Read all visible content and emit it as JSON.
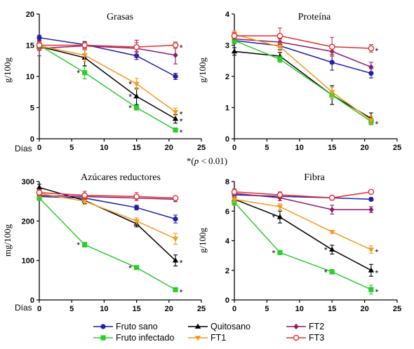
{
  "note": {
    "star": "*(",
    "p": "p",
    "rest": " < 0.01)"
  },
  "colors": {
    "fruto_sano": "#1f1fa8",
    "quitosano": "#000000",
    "ft2": "#8e1a6c",
    "fruto_infectado": "#2bcc2b",
    "ft1": "#f59a1f",
    "ft3": "#e03030"
  },
  "legend": [
    {
      "name": "Fruto sano",
      "color": "#1f1fa8",
      "marker": "circle"
    },
    {
      "name": "Quitosano",
      "color": "#000000",
      "marker": "triangle-up"
    },
    {
      "name": "FT2",
      "color": "#8e1a6c",
      "marker": "diamond"
    },
    {
      "name": "Fruto infectado",
      "color": "#2bcc2b",
      "marker": "square"
    },
    {
      "name": "FT1",
      "color": "#f59a1f",
      "marker": "triangle-down"
    },
    {
      "name": "FT3",
      "color": "#e03030",
      "marker": "open-circle"
    }
  ],
  "chart_data": [
    {
      "type": "line",
      "title": "Grasas",
      "ylabel": "g/100g",
      "xlabel": "Días",
      "xlim": [
        0,
        25
      ],
      "xticks": [
        0,
        5,
        10,
        15,
        20,
        25
      ],
      "ylim": [
        0,
        20
      ],
      "yticks": [
        0,
        5,
        10,
        15,
        20
      ],
      "x": [
        0,
        7,
        15,
        21
      ],
      "series": [
        {
          "name": "Fruto sano",
          "values": [
            16.2,
            15.1,
            13.3,
            10.0
          ],
          "err": [
            0.4,
            0.5,
            0.6,
            0.5
          ],
          "stars": [
            false,
            false,
            false,
            false
          ]
        },
        {
          "name": "Quitosano",
          "values": [
            14.8,
            13.0,
            6.8,
            3.2
          ],
          "err": [
            0.6,
            1.3,
            1.3,
            0.7
          ],
          "stars": [
            false,
            false,
            true,
            true
          ]
        },
        {
          "name": "FT2",
          "values": [
            14.5,
            14.9,
            14.5,
            13.4
          ],
          "err": [
            1.2,
            0.6,
            1.3,
            1.4
          ],
          "stars": [
            false,
            false,
            false,
            false
          ]
        },
        {
          "name": "Fruto infectado",
          "values": [
            15.0,
            10.6,
            5.0,
            1.4
          ],
          "err": [
            0.5,
            1.0,
            0.4,
            0.3
          ],
          "stars": [
            false,
            true,
            true,
            true
          ]
        },
        {
          "name": "FT1",
          "values": [
            14.9,
            13.4,
            8.8,
            4.3
          ],
          "err": [
            0.6,
            1.0,
            0.9,
            0.6
          ],
          "stars": [
            false,
            false,
            true,
            true
          ]
        },
        {
          "name": "FT3",
          "values": [
            15.0,
            15.0,
            14.7,
            15.0
          ],
          "err": [
            0.6,
            0.5,
            0.7,
            0.5
          ],
          "stars": [
            false,
            false,
            false,
            true
          ]
        }
      ]
    },
    {
      "type": "line",
      "title": "Proteína",
      "ylabel": "g/100g",
      "xlabel": "",
      "xlim": [
        0,
        25
      ],
      "xticks": [
        0,
        5,
        10,
        15,
        20,
        25
      ],
      "ylim": [
        0,
        4
      ],
      "yticks": [
        0,
        1,
        2,
        3,
        4
      ],
      "x": [
        0,
        7,
        15,
        21
      ],
      "series": [
        {
          "name": "Fruto sano",
          "values": [
            3.15,
            2.98,
            2.45,
            2.1
          ],
          "err": [
            0.1,
            0.12,
            0.25,
            0.15
          ],
          "stars": [
            false,
            false,
            false,
            false
          ]
        },
        {
          "name": "Quitosano",
          "values": [
            2.8,
            2.65,
            1.4,
            0.65
          ],
          "err": [
            0.12,
            0.12,
            0.3,
            0.18
          ],
          "stars": [
            false,
            false,
            false,
            false
          ]
        },
        {
          "name": "FT2",
          "values": [
            3.2,
            3.1,
            2.8,
            2.3
          ],
          "err": [
            0.1,
            0.1,
            0.15,
            0.15
          ],
          "stars": [
            false,
            false,
            false,
            false
          ]
        },
        {
          "name": "Fruto infectado",
          "values": [
            3.15,
            2.55,
            1.4,
            0.55
          ],
          "err": [
            0.1,
            0.1,
            0.12,
            0.1
          ],
          "stars": [
            false,
            false,
            false,
            true
          ]
        },
        {
          "name": "FT1",
          "values": [
            3.35,
            2.95,
            1.5,
            0.6
          ],
          "err": [
            0.12,
            0.12,
            0.15,
            0.12
          ],
          "stars": [
            false,
            false,
            false,
            false
          ]
        },
        {
          "name": "FT3",
          "values": [
            3.3,
            3.3,
            2.95,
            2.9
          ],
          "err": [
            0.12,
            0.25,
            0.3,
            0.12
          ],
          "stars": [
            false,
            false,
            false,
            true
          ]
        }
      ]
    },
    {
      "type": "line",
      "title": "Azúcares reductores",
      "ylabel": "mg/100g",
      "xlabel": "Días",
      "xlim": [
        0,
        25
      ],
      "xticks": [
        0,
        5,
        10,
        15,
        20,
        25
      ],
      "ylim": [
        0,
        300
      ],
      "yticks": [
        0,
        100,
        200,
        300
      ],
      "x": [
        0,
        7,
        15,
        21
      ],
      "series": [
        {
          "name": "Fruto sano",
          "values": [
            262,
            258,
            234,
            205
          ],
          "err": [
            6,
            5,
            6,
            10
          ],
          "stars": [
            false,
            false,
            false,
            false
          ]
        },
        {
          "name": "Quitosano",
          "values": [
            285,
            252,
            193,
            100
          ],
          "err": [
            8,
            8,
            8,
            14
          ],
          "stars": [
            false,
            false,
            false,
            true
          ]
        },
        {
          "name": "FT2",
          "values": [
            265,
            262,
            258,
            255
          ],
          "err": [
            8,
            6,
            6,
            6
          ],
          "stars": [
            false,
            false,
            false,
            false
          ]
        },
        {
          "name": "Fruto infectado",
          "values": [
            258,
            140,
            82,
            26
          ],
          "err": [
            6,
            6,
            5,
            4
          ],
          "stars": [
            false,
            true,
            true,
            true
          ]
        },
        {
          "name": "FT1",
          "values": [
            270,
            250,
            200,
            155
          ],
          "err": [
            8,
            8,
            8,
            14
          ],
          "stars": [
            false,
            false,
            false,
            false
          ]
        },
        {
          "name": "FT3",
          "values": [
            272,
            265,
            262,
            258
          ],
          "err": [
            8,
            10,
            10,
            5
          ],
          "stars": [
            false,
            false,
            false,
            false
          ]
        }
      ]
    },
    {
      "type": "line",
      "title": "Fibra",
      "ylabel": "g/100g",
      "xlabel": "",
      "xlim": [
        0,
        25
      ],
      "xticks": [
        0,
        5,
        10,
        15,
        20,
        25
      ],
      "ylim": [
        0,
        8
      ],
      "yticks": [
        0,
        2,
        4,
        6,
        8
      ],
      "x": [
        0,
        7,
        15,
        21
      ],
      "series": [
        {
          "name": "Fruto sano",
          "values": [
            7.1,
            7.0,
            6.9,
            6.8
          ],
          "err": [
            0.15,
            0.15,
            0.15,
            0.1
          ],
          "stars": [
            false,
            false,
            false,
            false
          ]
        },
        {
          "name": "Quitosano",
          "values": [
            6.8,
            5.6,
            3.4,
            2.0
          ],
          "err": [
            0.2,
            0.4,
            0.3,
            0.4
          ],
          "stars": [
            false,
            true,
            true,
            true
          ]
        },
        {
          "name": "FT2",
          "values": [
            7.2,
            6.9,
            6.1,
            6.1
          ],
          "err": [
            0.2,
            0.2,
            0.3,
            0.2
          ],
          "stars": [
            false,
            false,
            false,
            false
          ]
        },
        {
          "name": "Fruto infectado",
          "values": [
            6.6,
            3.2,
            1.9,
            0.7
          ],
          "err": [
            0.2,
            0.15,
            0.15,
            0.3
          ],
          "stars": [
            false,
            true,
            true,
            true
          ]
        },
        {
          "name": "FT1",
          "values": [
            6.8,
            6.3,
            4.6,
            3.4
          ],
          "err": [
            0.2,
            0.2,
            0.1,
            0.25
          ],
          "stars": [
            false,
            false,
            false,
            true
          ]
        },
        {
          "name": "FT3",
          "values": [
            7.3,
            7.1,
            6.9,
            7.3
          ],
          "err": [
            0.2,
            0.2,
            0.15,
            0.1
          ],
          "stars": [
            false,
            false,
            false,
            false
          ]
        }
      ]
    }
  ]
}
